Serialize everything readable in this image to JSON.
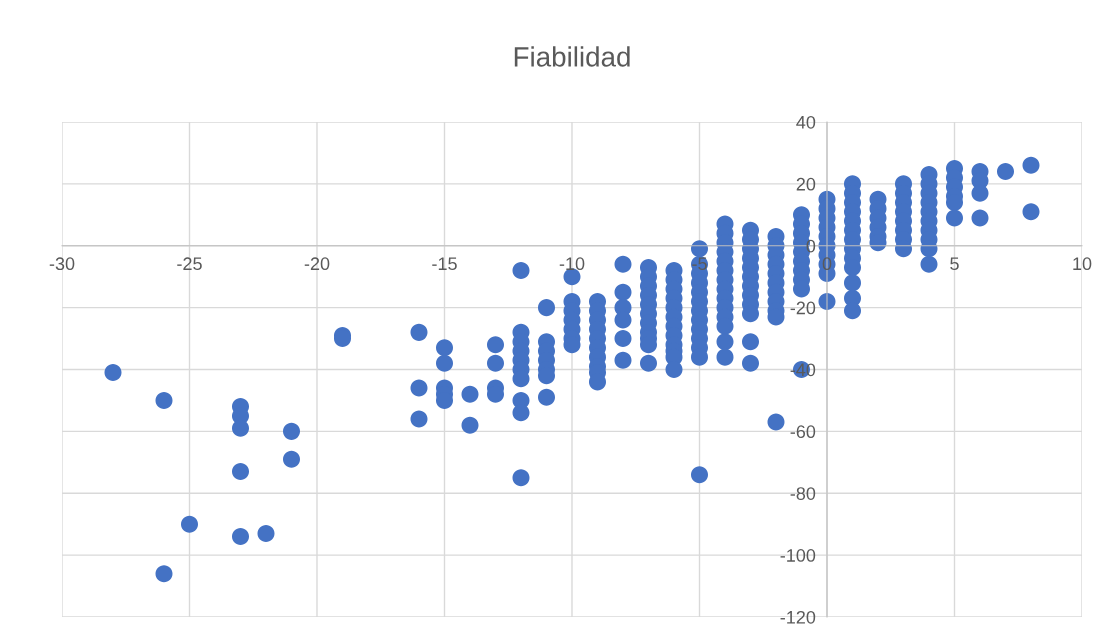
{
  "chart_data": {
    "type": "scatter",
    "title": "Fiabilidad",
    "x": [
      -28,
      -26,
      -26,
      -25,
      -23,
      -23,
      -23,
      -23,
      -23,
      -22,
      -21,
      -21,
      -19,
      -19,
      -16,
      -16,
      -16,
      -15,
      -15,
      -15,
      -15,
      -15,
      -14,
      -14,
      -13,
      -13,
      -13,
      -13,
      -12,
      -12,
      -12,
      -12,
      -12,
      -12,
      -12,
      -12,
      -12,
      -12,
      -11,
      -11,
      -11,
      -11,
      -11,
      -11,
      -11,
      -10,
      -10,
      -10,
      -10,
      -10,
      -10,
      -10,
      -9,
      -9,
      -9,
      -9,
      -9,
      -9,
      -9,
      -9,
      -9,
      -9,
      -8,
      -8,
      -8,
      -8,
      -8,
      -8,
      -7,
      -7,
      -7,
      -7,
      -7,
      -7,
      -7,
      -7,
      -7,
      -7,
      -7,
      -6,
      -6,
      -6,
      -6,
      -6,
      -6,
      -6,
      -6,
      -6,
      -6,
      -6,
      -6,
      -5,
      -5,
      -5,
      -5,
      -5,
      -5,
      -5,
      -5,
      -5,
      -5,
      -5,
      -5,
      -5,
      -4,
      -4,
      -4,
      -4,
      -4,
      -4,
      -4,
      -4,
      -4,
      -4,
      -4,
      -4,
      -4,
      -4,
      -3,
      -3,
      -3,
      -3,
      -3,
      -3,
      -3,
      -3,
      -3,
      -3,
      -3,
      -3,
      -2,
      -2,
      -2,
      -2,
      -2,
      -2,
      -2,
      -2,
      -2,
      -2,
      -2,
      -1,
      -1,
      -1,
      -1,
      -1,
      -1,
      -1,
      -1,
      -1,
      -1,
      0,
      0,
      0,
      0,
      0,
      0,
      0,
      0,
      0,
      0,
      1,
      1,
      1,
      1,
      1,
      1,
      1,
      1,
      1,
      1,
      1,
      1,
      1,
      2,
      2,
      2,
      2,
      2,
      2,
      3,
      3,
      3,
      3,
      3,
      3,
      3,
      3,
      4,
      4,
      4,
      4,
      4,
      4,
      4,
      4,
      4,
      4,
      5,
      5,
      5,
      5,
      5,
      5,
      6,
      6,
      6,
      6,
      7,
      8,
      8
    ],
    "values": [
      -41,
      -50,
      -106,
      -90,
      -52,
      -55,
      -59,
      -73,
      -94,
      -93,
      -60,
      -69,
      -29,
      -30,
      -28,
      -46,
      -56,
      -33,
      -38,
      -46,
      -48,
      -50,
      -48,
      -58,
      -32,
      -38,
      -46,
      -48,
      -8,
      -28,
      -31,
      -34,
      -37,
      -40,
      -43,
      -50,
      -54,
      -75,
      -20,
      -31,
      -34,
      -37,
      -40,
      -42,
      -49,
      -10,
      -18,
      -21,
      -24,
      -27,
      -30,
      -32,
      -18,
      -21,
      -24,
      -27,
      -30,
      -33,
      -36,
      -39,
      -41,
      -44,
      -6,
      -15,
      -20,
      -24,
      -30,
      -37,
      -7,
      -10,
      -13,
      -16,
      -19,
      -22,
      -25,
      -28,
      -30,
      -32,
      -38,
      -8,
      -11,
      -14,
      -17,
      -20,
      -23,
      -26,
      -29,
      -32,
      -34,
      -36,
      -40,
      -1,
      -6,
      -9,
      -12,
      -15,
      -18,
      -21,
      -24,
      -27,
      -30,
      -33,
      -36,
      -74,
      7,
      4,
      1,
      -2,
      -5,
      -8,
      -11,
      -14,
      -17,
      -20,
      -23,
      -26,
      -31,
      -36,
      5,
      2,
      -1,
      -4,
      -7,
      -10,
      -13,
      -16,
      -19,
      -22,
      -31,
      -38,
      3,
      0,
      -3,
      -6,
      -9,
      -12,
      -15,
      -18,
      -21,
      -23,
      -57,
      10,
      7,
      4,
      1,
      -2,
      -5,
      -8,
      -11,
      -14,
      -40,
      15,
      12,
      9,
      6,
      3,
      0,
      -3,
      -6,
      -9,
      -18,
      20,
      17,
      14,
      11,
      8,
      5,
      2,
      -1,
      -4,
      -7,
      -12,
      -17,
      -21,
      15,
      12,
      9,
      6,
      3,
      1,
      20,
      17,
      14,
      11,
      8,
      5,
      2,
      -1,
      23,
      20,
      17,
      14,
      11,
      8,
      5,
      2,
      -1,
      -6,
      25,
      22,
      19,
      16,
      14,
      9,
      24,
      21,
      17,
      9,
      24,
      26,
      11
    ],
    "color": "#4472c4",
    "marker": "circle",
    "xlim": [
      -30,
      10
    ],
    "xticks": [
      -30,
      -25,
      -20,
      -15,
      -10,
      -5,
      0,
      5,
      10
    ],
    "ylim": [
      -120,
      40
    ],
    "yticks": [
      -120,
      -100,
      -80,
      -60,
      -40,
      -20,
      0,
      20,
      40
    ],
    "grid": true
  }
}
